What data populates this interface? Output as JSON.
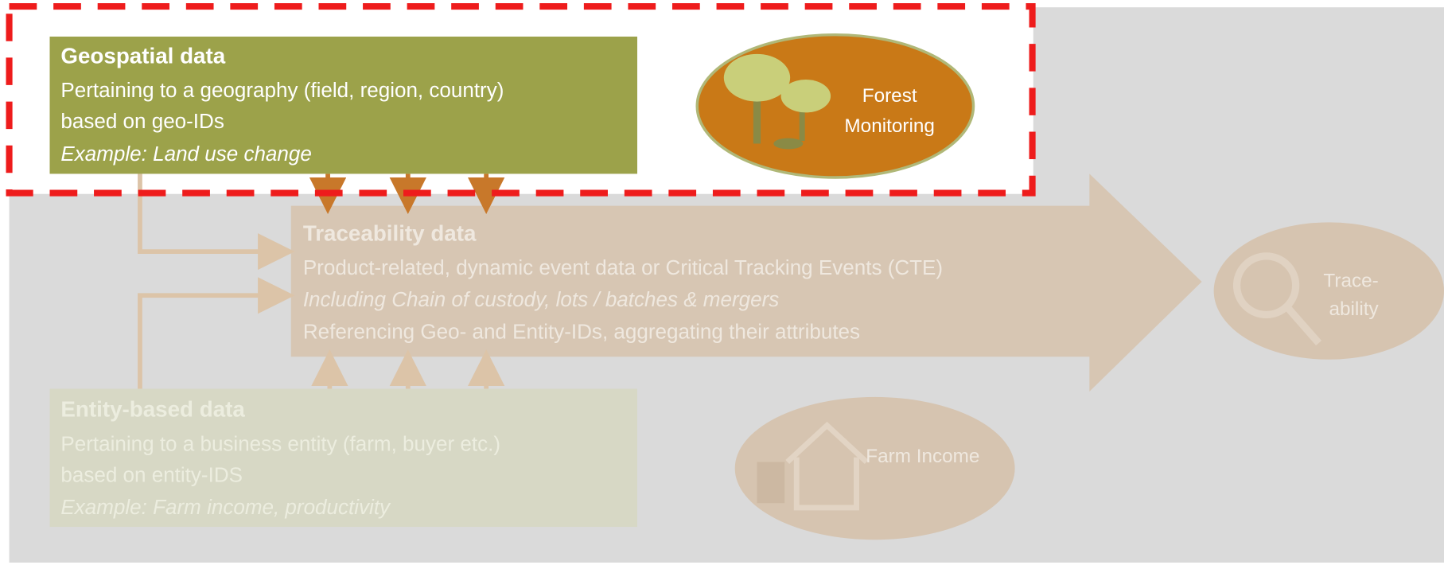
{
  "geospatial": {
    "title": "Geospatial data",
    "lines": [
      "Pertaining to a geography (field, region, country)",
      "based on geo-IDs"
    ],
    "example": "Example: Land use change"
  },
  "forest_monitoring": {
    "lines": [
      "Forest",
      "Monitoring"
    ]
  },
  "traceability": {
    "title": "Traceability data",
    "lines": [
      "Product-related, dynamic event data or Critical Tracking Events (CTE)",
      "Including Chain of custody, lots / batches & mergers",
      "Referencing Geo- and Entity-IDs, aggregating their attributes"
    ]
  },
  "traceability_icon": {
    "lines": [
      "Trace-",
      "ability"
    ]
  },
  "entity": {
    "title": "Entity-based data",
    "lines": [
      "Pertaining to a business entity (farm, buyer etc.)",
      "based on entity-IDS"
    ],
    "example": "Example: Farm income, productivity"
  },
  "farm_income": {
    "label": "Farm Income"
  }
}
